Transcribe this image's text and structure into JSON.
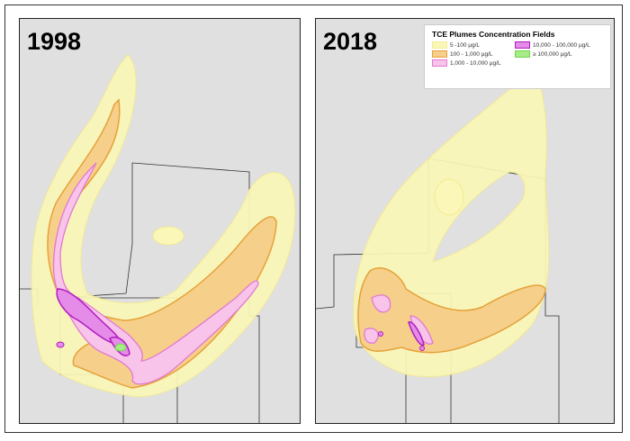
{
  "maps": [
    {
      "year": "1998"
    },
    {
      "year": "2018"
    }
  ],
  "legend": {
    "title": "TCE Plumes Concentration Fields",
    "items": [
      {
        "label": "5 -100 µg/L",
        "fill": "#fbf7b8",
        "stroke": "#f6ec9a"
      },
      {
        "label": "10,000 - 100,000 µg/L",
        "fill": "#e58be8",
        "stroke": "#b01cc0"
      },
      {
        "label": "100 - 1,000 µg/L",
        "fill": "#f6cf8a",
        "stroke": "#e5a23a"
      },
      {
        "label": "≥ 100,000 µg/L",
        "fill": "#a7ec86",
        "stroke": "#6fd34c"
      },
      {
        "label": "1,000 - 10,000 µg/L",
        "fill": "#f8c4ea",
        "stroke": "#e07ad0"
      }
    ]
  },
  "colors": {
    "background": "#e0e0e0",
    "yellow": "#fbf7b8",
    "orange": "#f6cf8a",
    "pink": "#f8c4ea",
    "purple": "#e58be8",
    "green": "#a7ec86"
  }
}
